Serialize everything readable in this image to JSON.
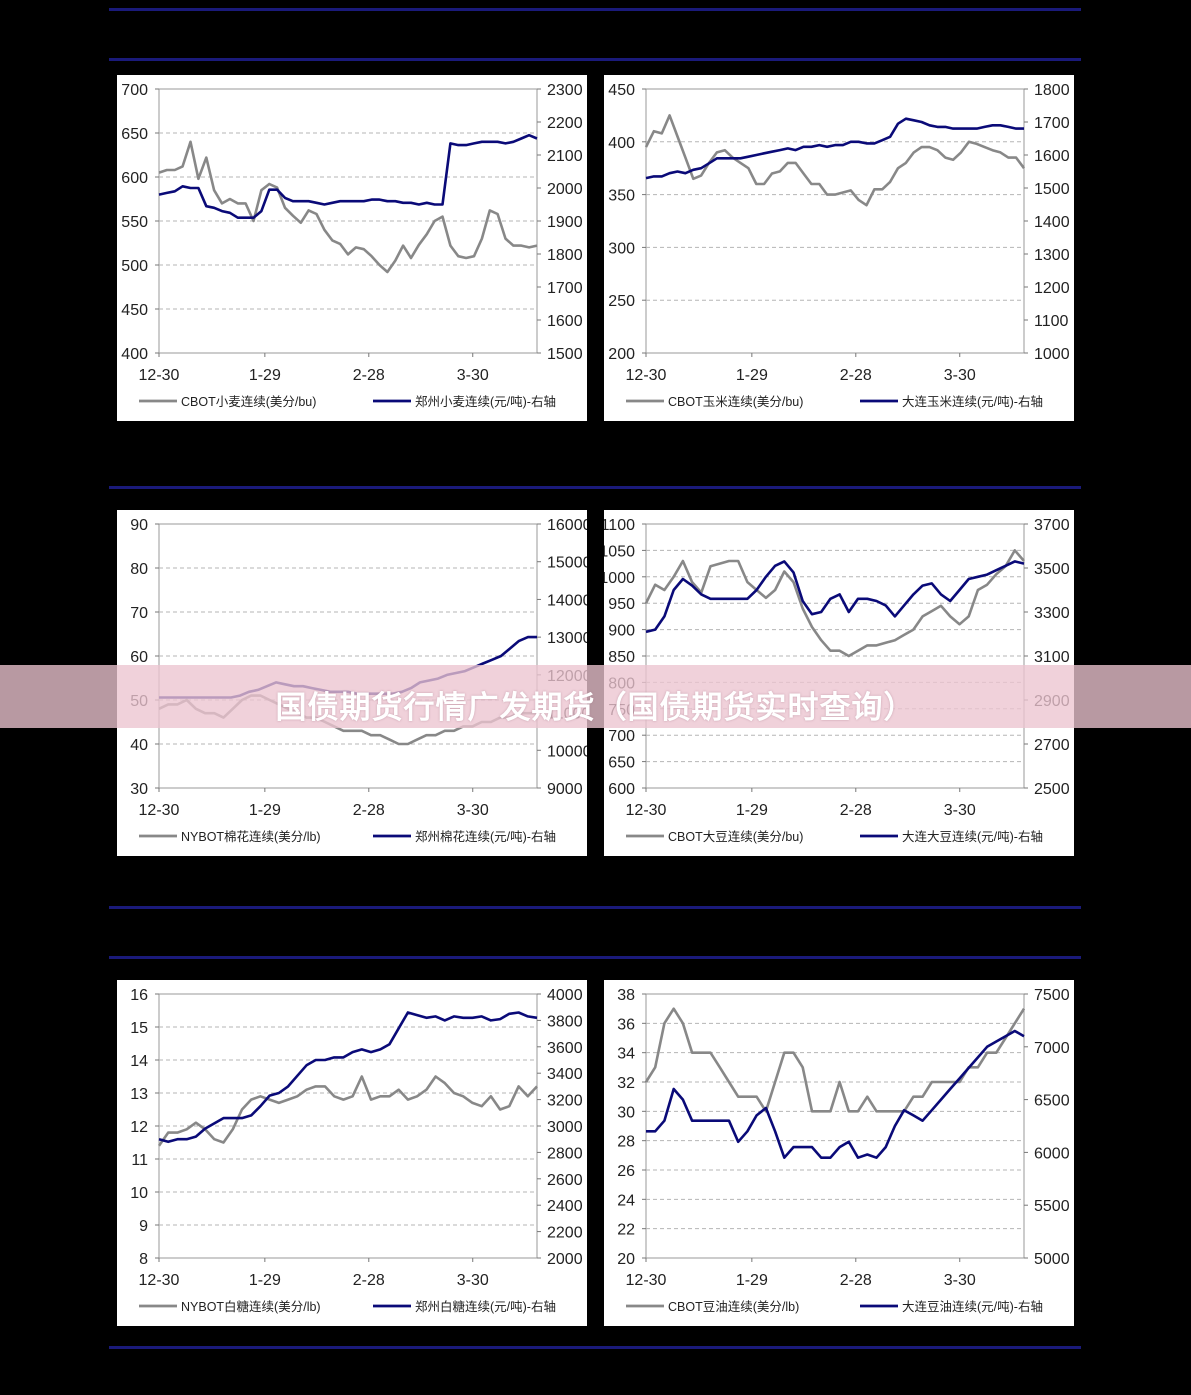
{
  "banner": {
    "title": "国债期货行情广发期货（国债期货实时查询）"
  },
  "colors": {
    "left_series": "#888888",
    "right_series": "#0a0a78",
    "grid": "#999999"
  },
  "chart_data": [
    {
      "type": "line",
      "x_ticks": [
        "12-30",
        "1-29",
        "2-28",
        "3-30"
      ],
      "left_ticks": [
        "700",
        "650",
        "600",
        "550",
        "500",
        "450",
        "400"
      ],
      "right_ticks": [
        "2300",
        "2200",
        "2100",
        "2000",
        "1900",
        "1800",
        "1700",
        "1600",
        "1500"
      ],
      "ylim_left": [
        400,
        700
      ],
      "ylim_right": [
        1500,
        2300
      ],
      "series": [
        {
          "name": "CBOT小麦连续(美分/bu)",
          "axis": "left",
          "values": [
            605,
            608,
            608,
            612,
            640,
            598,
            622,
            585,
            570,
            575,
            570,
            570,
            550,
            585,
            592,
            588,
            565,
            556,
            548,
            562,
            558,
            540,
            528,
            524,
            512,
            520,
            518,
            510,
            500,
            492,
            505,
            522,
            508,
            523,
            535,
            550,
            555,
            522,
            510,
            508,
            510,
            530,
            562,
            558,
            530,
            522,
            522,
            520,
            522
          ]
        },
        {
          "name": "郑州小麦连续(元/吨)-右轴",
          "axis": "right",
          "values": [
            1980,
            1985,
            1990,
            2005,
            2000,
            2000,
            1945,
            1940,
            1930,
            1925,
            1910,
            1910,
            1910,
            1930,
            1995,
            1995,
            1970,
            1960,
            1960,
            1960,
            1955,
            1950,
            1955,
            1960,
            1960,
            1960,
            1960,
            1965,
            1965,
            1960,
            1960,
            1955,
            1955,
            1950,
            1955,
            1950,
            1950,
            2135,
            2130,
            2130,
            2135,
            2140,
            2140,
            2140,
            2135,
            2140,
            2150,
            2160,
            2150
          ]
        }
      ]
    },
    {
      "type": "line",
      "x_ticks": [
        "12-30",
        "1-29",
        "2-28",
        "3-30"
      ],
      "left_ticks": [
        "450",
        "400",
        "350",
        "300",
        "250",
        "200"
      ],
      "right_ticks": [
        "1800",
        "1700",
        "1600",
        "1500",
        "1400",
        "1300",
        "1200",
        "1100",
        "1000"
      ],
      "ylim_left": [
        200,
        450
      ],
      "ylim_right": [
        1000,
        1800
      ],
      "series": [
        {
          "name": "CBOT玉米连续(美分/bu)",
          "axis": "left",
          "values": [
            395,
            410,
            408,
            425,
            405,
            385,
            365,
            368,
            380,
            390,
            392,
            385,
            380,
            375,
            360,
            360,
            370,
            372,
            380,
            380,
            370,
            360,
            360,
            350,
            350,
            352,
            354,
            345,
            340,
            355,
            355,
            362,
            375,
            380,
            390,
            395,
            395,
            392,
            385,
            383,
            390,
            400,
            398,
            395,
            392,
            390,
            385,
            385,
            375
          ]
        },
        {
          "name": "大连玉米连续(元/吨)-右轴",
          "axis": "right",
          "values": [
            1530,
            1535,
            1535,
            1545,
            1550,
            1545,
            1555,
            1560,
            1575,
            1590,
            1590,
            1590,
            1590,
            1595,
            1600,
            1605,
            1610,
            1615,
            1620,
            1615,
            1625,
            1625,
            1630,
            1625,
            1630,
            1630,
            1640,
            1640,
            1635,
            1635,
            1645,
            1655,
            1695,
            1710,
            1705,
            1700,
            1690,
            1685,
            1685,
            1680,
            1680,
            1680,
            1680,
            1685,
            1690,
            1690,
            1685,
            1680,
            1680
          ]
        }
      ]
    },
    {
      "type": "line",
      "x_ticks": [
        "12-30",
        "1-29",
        "2-28",
        "3-30"
      ],
      "left_ticks": [
        "90",
        "80",
        "70",
        "60",
        "50",
        "40",
        "30"
      ],
      "right_ticks": [
        "16000",
        "15000",
        "14000",
        "13000",
        "12000",
        "11000",
        "10000",
        "9000"
      ],
      "ylim_left": [
        30,
        90
      ],
      "ylim_right": [
        9000,
        16000
      ],
      "series": [
        {
          "name": "NYBOT棉花连续(美分/lb)",
          "axis": "left",
          "values": [
            48,
            49,
            49,
            50,
            48,
            47,
            47,
            46,
            48,
            50,
            51,
            51,
            50,
            49,
            48,
            47,
            46,
            46,
            45,
            44,
            43,
            43,
            43,
            42,
            42,
            41,
            40,
            40,
            41,
            42,
            42,
            43,
            43,
            44,
            44,
            45,
            45,
            46,
            46,
            47,
            47,
            47
          ]
        },
        {
          "name": "郑州棉花连续(元/吨)-右轴",
          "axis": "right",
          "values": [
            11400,
            11400,
            11400,
            11400,
            11400,
            11400,
            11400,
            11400,
            11400,
            11450,
            11550,
            11600,
            11700,
            11800,
            11750,
            11700,
            11700,
            11650,
            11600,
            11550,
            11550,
            11550,
            11500,
            11500,
            11500,
            11500,
            11500,
            11550,
            11650,
            11800,
            11850,
            11900,
            12000,
            12050,
            12100,
            12200,
            12300,
            12400,
            12500,
            12700,
            12900,
            13000,
            13000
          ]
        }
      ]
    },
    {
      "type": "line",
      "x_ticks": [
        "12-30",
        "1-29",
        "2-28",
        "3-30"
      ],
      "left_ticks": [
        "1100",
        "1050",
        "1000",
        "950",
        "900",
        "850",
        "800",
        "750",
        "700",
        "650",
        "600"
      ],
      "right_ticks": [
        "3700",
        "3500",
        "3300",
        "3100",
        "2900",
        "2700",
        "2500"
      ],
      "ylim_left": [
        600,
        1100
      ],
      "ylim_right": [
        2500,
        3700
      ],
      "series": [
        {
          "name": "CBOT大豆连续(美分/bu)",
          "axis": "left",
          "values": [
            950,
            985,
            975,
            1000,
            1030,
            990,
            970,
            1020,
            1025,
            1030,
            1030,
            990,
            975,
            960,
            975,
            1010,
            990,
            940,
            905,
            880,
            860,
            860,
            850,
            860,
            870,
            870,
            875,
            880,
            890,
            900,
            925,
            935,
            945,
            925,
            910,
            925,
            975,
            985,
            1005,
            1020,
            1050,
            1030
          ]
        },
        {
          "name": "大连大豆连续(元/吨)-右轴",
          "axis": "right",
          "values": [
            3210,
            3220,
            3280,
            3400,
            3450,
            3420,
            3380,
            3360,
            3360,
            3360,
            3360,
            3360,
            3400,
            3460,
            3510,
            3530,
            3480,
            3350,
            3290,
            3300,
            3360,
            3380,
            3300,
            3360,
            3360,
            3350,
            3330,
            3280,
            3330,
            3380,
            3420,
            3430,
            3380,
            3350,
            3400,
            3450,
            3460,
            3470,
            3490,
            3510,
            3530,
            3520
          ]
        }
      ]
    },
    {
      "type": "line",
      "x_ticks": [
        "12-30",
        "1-29",
        "2-28",
        "3-30"
      ],
      "left_ticks": [
        "16",
        "15",
        "14",
        "13",
        "12",
        "11",
        "10",
        "9",
        "8"
      ],
      "right_ticks": [
        "4000",
        "3800",
        "3600",
        "3400",
        "3200",
        "3000",
        "2800",
        "2600",
        "2400",
        "2200",
        "2000"
      ],
      "ylim_left": [
        8,
        16
      ],
      "ylim_right": [
        2000,
        4000
      ],
      "series": [
        {
          "name": "NYBOT白糖连续(美分/lb)",
          "axis": "left",
          "values": [
            11.4,
            11.8,
            11.8,
            11.9,
            12.1,
            11.9,
            11.6,
            11.5,
            11.9,
            12.5,
            12.8,
            12.9,
            12.8,
            12.7,
            12.8,
            12.9,
            13.1,
            13.2,
            13.2,
            12.9,
            12.8,
            12.9,
            13.5,
            12.8,
            12.9,
            12.9,
            13.1,
            12.8,
            12.9,
            13.1,
            13.5,
            13.3,
            13.0,
            12.9,
            12.7,
            12.6,
            12.9,
            12.5,
            12.6,
            13.2,
            12.9,
            13.2
          ]
        },
        {
          "name": "郑州白糖连续(元/吨)-右轴",
          "axis": "right",
          "values": [
            2900,
            2880,
            2900,
            2900,
            2920,
            2980,
            3020,
            3060,
            3060,
            3060,
            3080,
            3150,
            3230,
            3250,
            3300,
            3380,
            3460,
            3500,
            3500,
            3520,
            3520,
            3560,
            3580,
            3560,
            3580,
            3620,
            3740,
            3860,
            3840,
            3820,
            3830,
            3800,
            3830,
            3820,
            3820,
            3830,
            3800,
            3810,
            3850,
            3860,
            3830,
            3820
          ]
        }
      ]
    },
    {
      "type": "line",
      "x_ticks": [
        "12-30",
        "1-29",
        "2-28",
        "3-30"
      ],
      "left_ticks": [
        "38",
        "36",
        "34",
        "32",
        "30",
        "28",
        "26",
        "24",
        "22",
        "20"
      ],
      "right_ticks": [
        "7500",
        "7000",
        "6500",
        "6000",
        "5500",
        "5000"
      ],
      "ylim_left": [
        20,
        38
      ],
      "ylim_right": [
        5000,
        7500
      ],
      "series": [
        {
          "name": "CBOT豆油连续(美分/lb)",
          "axis": "left",
          "values": [
            32,
            33,
            36,
            37,
            36,
            34,
            34,
            34,
            33,
            32,
            31,
            31,
            31,
            30,
            32,
            34,
            34,
            33,
            30,
            30,
            30,
            32,
            30,
            30,
            31,
            30,
            30,
            30,
            30,
            31,
            31,
            32,
            32,
            32,
            32,
            33,
            33,
            34,
            34,
            35,
            36,
            37
          ]
        },
        {
          "name": "大连豆油连续(元/吨)-右轴",
          "axis": "right",
          "values": [
            6200,
            6200,
            6300,
            6600,
            6500,
            6300,
            6300,
            6300,
            6300,
            6300,
            6100,
            6200,
            6350,
            6420,
            6200,
            5950,
            6050,
            6050,
            6050,
            5950,
            5950,
            6050,
            6100,
            5950,
            5980,
            5950,
            6050,
            6250,
            6400,
            6350,
            6300,
            6400,
            6500,
            6600,
            6700,
            6800,
            6900,
            7000,
            7050,
            7100,
            7150,
            7100
          ]
        }
      ]
    }
  ]
}
